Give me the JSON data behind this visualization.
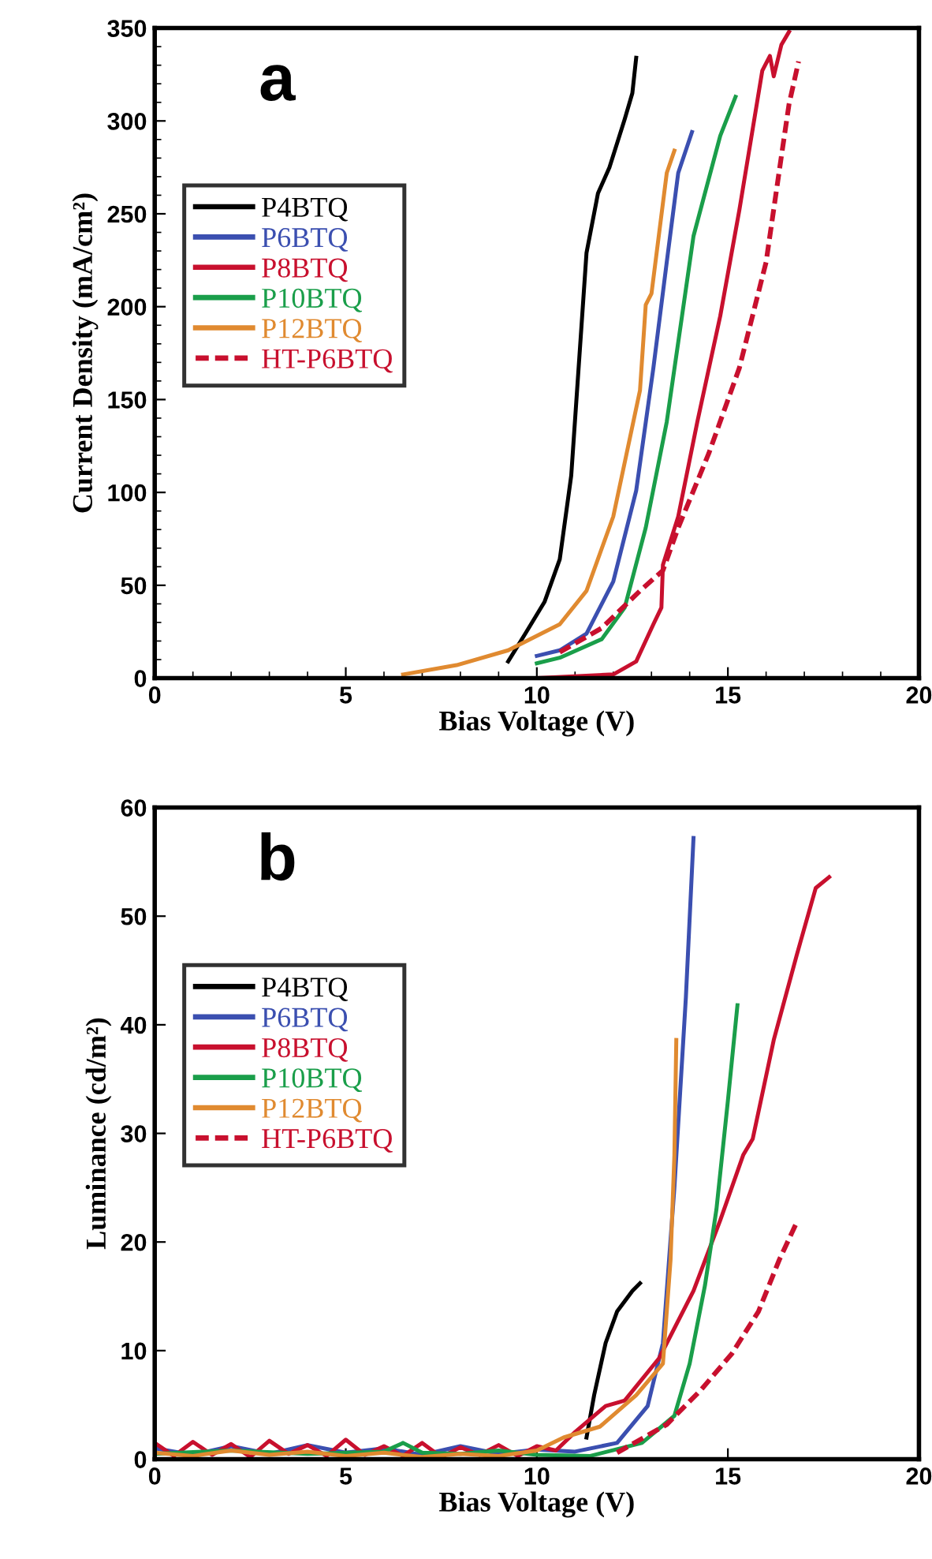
{
  "chart_data": [
    {
      "type": "line",
      "xlabel": "Bias Voltage (V)",
      "ylabel": "Current Density (mA/cm²)",
      "annotations": [
        "a"
      ],
      "xlim": [
        0,
        20
      ],
      "xticks": [
        0,
        5,
        10,
        15,
        20
      ],
      "ylim": [
        0,
        350
      ],
      "yticks": [
        0,
        50,
        100,
        150,
        200,
        250,
        300,
        350
      ],
      "legend": "top left",
      "series": [
        {
          "name": "P4BTQ",
          "color": "#000000",
          "x": [
            9.25,
            9.7,
            10.2,
            10.6,
            10.9,
            11.3,
            11.6,
            11.9,
            12.3,
            12.5,
            12.6
          ],
          "values": [
            9,
            24,
            41,
            64,
            109,
            229,
            261,
            275,
            301,
            315,
            334
          ]
        },
        {
          "name": "P6BTQ",
          "color": "#3b4fb0",
          "x": [
            10.0,
            10.6,
            11.3,
            12.0,
            12.6,
            13.05,
            13.4,
            13.7,
            14.06
          ],
          "values": [
            12,
            15,
            24,
            52,
            101,
            167,
            224,
            272,
            294
          ]
        },
        {
          "name": "P8BTQ",
          "color": "#c8102e",
          "x": [
            0,
            5,
            10,
            12.0,
            12.6,
            13.05,
            13.26,
            13.3,
            13.7,
            14.2,
            14.8,
            15.3,
            15.9,
            16.1,
            16.2,
            16.4,
            16.6
          ],
          "values": [
            0,
            0,
            0,
            2,
            9,
            29,
            38,
            61,
            87,
            138,
            195,
            252,
            327,
            335,
            324,
            341,
            348
          ]
        },
        {
          "name": "P10BTQ",
          "color": "#1a9e4a",
          "x": [
            10.0,
            10.6,
            11.7,
            12.3,
            12.85,
            13.4,
            13.8,
            14.1,
            14.8,
            15.2
          ],
          "values": [
            8,
            11,
            21,
            38,
            81,
            138,
            195,
            238,
            292,
            313
          ]
        },
        {
          "name": "P12BTQ",
          "color": "#e08a30",
          "x": [
            6.5,
            7.9,
            9.25,
            10.6,
            11.3,
            12.0,
            12.7,
            12.85,
            13.0,
            13.4,
            13.6
          ],
          "values": [
            2,
            7,
            15,
            29,
            47,
            87,
            155,
            201,
            207,
            272,
            284
          ]
        },
        {
          "name": "HT-P6BTQ",
          "color": "#c8102e",
          "line_style": "dashed",
          "x": [
            10.6,
            11.7,
            12.7,
            13.3,
            13.7,
            14.5,
            15.3,
            16.0,
            16.4,
            16.6,
            16.85
          ],
          "values": [
            14,
            27,
            47,
            58,
            81,
            121,
            167,
            224,
            281,
            309,
            332
          ]
        }
      ]
    },
    {
      "type": "line",
      "xlabel": "Bias Voltage (V)",
      "ylabel": "Luminance (cd/m²)",
      "annotations": [
        "b"
      ],
      "xlim": [
        0,
        20
      ],
      "xticks": [
        0,
        5,
        10,
        15,
        20
      ],
      "ylim": [
        0,
        60
      ],
      "yticks": [
        0,
        10,
        20,
        30,
        40,
        50,
        60
      ],
      "legend": "top left",
      "series": [
        {
          "name": "P4BTQ",
          "color": "#000000",
          "x": [
            11.3,
            11.5,
            11.8,
            12.1,
            12.5,
            12.7
          ],
          "values": [
            2,
            5.9,
            10.7,
            13.6,
            15.5,
            16.2
          ]
        },
        {
          "name": "P6BTQ",
          "color": "#3b4fb0",
          "x": [
            0,
            1,
            2,
            3,
            4,
            5,
            6,
            7,
            8,
            9,
            10,
            11,
            12.1,
            12.9,
            13.3,
            13.6,
            13.9,
            14.1
          ],
          "values": [
            1,
            0.4,
            1.2,
            0.5,
            1.3,
            0.6,
            1,
            0.4,
            1.2,
            0.5,
            0.9,
            0.7,
            1.5,
            4.9,
            10.7,
            25,
            42.5,
            57.2
          ]
        },
        {
          "name": "P8BTQ",
          "color": "#c8102e",
          "x": [
            0,
            0.5,
            1,
            1.5,
            2,
            2.5,
            3,
            3.5,
            4,
            4.5,
            5,
            5.5,
            6,
            6.5,
            7,
            7.5,
            8,
            8.5,
            9,
            9.5,
            10,
            10.5,
            11,
            11.8,
            12.3,
            13.2,
            14.1,
            14.8,
            15.4,
            15.65,
            16.2,
            16.8,
            17.3,
            17.65
          ],
          "values": [
            1.5,
            0.3,
            1.6,
            0.4,
            1.4,
            0.2,
            1.7,
            0.5,
            1.3,
            0.3,
            1.8,
            0.4,
            1.2,
            0.3,
            1.5,
            0.2,
            1.1,
            0.4,
            1.3,
            0.3,
            1.2,
            0.8,
            2.5,
            4.9,
            5.4,
            9.3,
            15.5,
            22,
            28,
            29.5,
            38.6,
            46.4,
            52.6,
            53.6
          ]
        },
        {
          "name": "P10BTQ",
          "color": "#1a9e4a",
          "x": [
            0,
            2,
            4,
            6,
            6.5,
            7,
            8,
            9,
            10,
            11.4,
            12.75,
            13.6,
            14.0,
            14.4,
            14.7,
            15.0,
            15.25
          ],
          "values": [
            0.5,
            0.8,
            0.5,
            0.7,
            1.5,
            0.6,
            0.5,
            0.8,
            0.4,
            0.3,
            1.5,
            4,
            8.8,
            16,
            23,
            33,
            41.8
          ]
        },
        {
          "name": "P12BTQ",
          "color": "#e08a30",
          "x": [
            0,
            1,
            2,
            3,
            4,
            5,
            6,
            7,
            8,
            9,
            10,
            10.7,
            11.65,
            12.6,
            13.3,
            13.5,
            13.6,
            13.65
          ],
          "values": [
            0.6,
            0.3,
            0.8,
            0.4,
            0.7,
            0.3,
            0.6,
            0.2,
            0.5,
            0.3,
            0.8,
            2,
            3,
            5.9,
            8.8,
            18.4,
            28,
            38.6
          ]
        },
        {
          "name": "HT-P6BTQ",
          "color": "#c8102e",
          "line_style": "dashed",
          "x": [
            12.1,
            13.4,
            14.3,
            15.1,
            15.8,
            16.35,
            16.8
          ],
          "values": [
            0.6,
            3.2,
            6.4,
            9.7,
            13.6,
            18.4,
            21.8
          ]
        }
      ]
    }
  ]
}
